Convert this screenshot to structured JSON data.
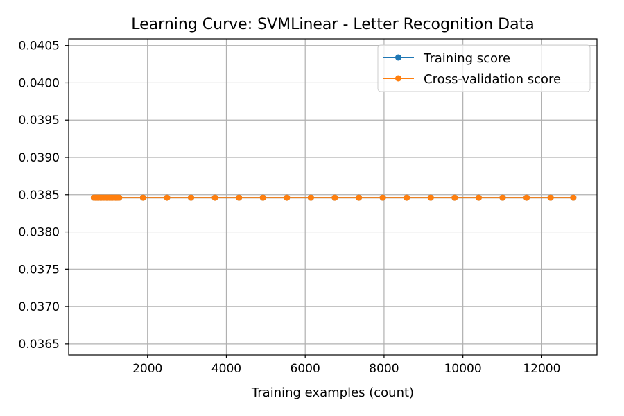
{
  "chart_data": {
    "type": "line",
    "title": "Learning Curve: SVMLinear - Letter Recognition Data",
    "xlabel": "Training examples (count)",
    "ylabel": "",
    "xlim": [
      0,
      13400
    ],
    "ylim": [
      0.03635,
      0.04059
    ],
    "xticks": [
      2000,
      4000,
      6000,
      8000,
      10000,
      12000
    ],
    "xtick_labels": [
      "2000",
      "4000",
      "6000",
      "8000",
      "10000",
      "12000"
    ],
    "yticks": [
      0.0365,
      0.037,
      0.0375,
      0.038,
      0.0385,
      0.039,
      0.0395,
      0.04,
      0.0405
    ],
    "ytick_labels": [
      "0.0365",
      "0.0370",
      "0.0375",
      "0.0380",
      "0.0385",
      "0.0390",
      "0.0395",
      "0.0400",
      "0.0405"
    ],
    "grid": true,
    "legend_position": "top-right",
    "x": [
      640,
      672,
      704,
      736,
      768,
      800,
      832,
      864,
      896,
      928,
      960,
      992,
      1024,
      1056,
      1088,
      1120,
      1152,
      1184,
      1216,
      1248,
      1280,
      1888,
      2496,
      3104,
      3712,
      4320,
      4928,
      5536,
      6144,
      6752,
      7360,
      7968,
      8576,
      9184,
      9792,
      10400,
      11008,
      11616,
      12224,
      12800
    ],
    "series": [
      {
        "name": "Training score",
        "color": "#1f77b4",
        "marker": "circle",
        "constant": 0.03846
      },
      {
        "name": "Cross-validation score",
        "color": "#ff7f0e",
        "marker": "circle",
        "constant": 0.03846
      }
    ]
  }
}
